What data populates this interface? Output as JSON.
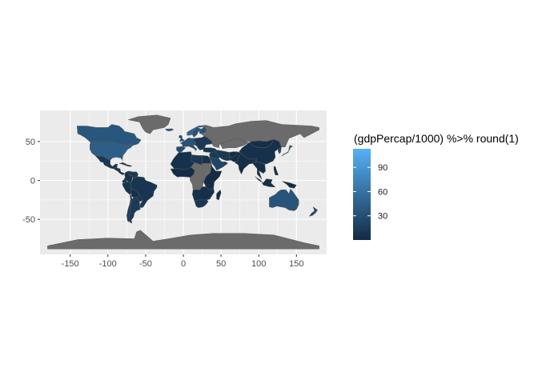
{
  "chart_data": {
    "type": "choropleth map",
    "xlim": [
      -190,
      190
    ],
    "ylim": [
      -95,
      90
    ],
    "x_ticks": [
      {
        "value": -150,
        "label": "-150"
      },
      {
        "value": -100,
        "label": "-100"
      },
      {
        "value": -50,
        "label": "-50"
      },
      {
        "value": 0,
        "label": "0"
      },
      {
        "value": 50,
        "label": "50"
      },
      {
        "value": 100,
        "label": "100"
      },
      {
        "value": 150,
        "label": "150"
      }
    ],
    "y_ticks": [
      {
        "value": 50,
        "label": "50"
      },
      {
        "value": 0,
        "label": "0"
      },
      {
        "value": -50,
        "label": "-50"
      }
    ],
    "grid": true,
    "xlabel": "",
    "ylabel": "",
    "legend": {
      "title": "(gdpPercap/1000) %>% round(1)",
      "placement": "right",
      "range": [
        0,
        113
      ],
      "breaks": [
        {
          "value": 90,
          "label": "90"
        },
        {
          "value": 60,
          "label": "60"
        },
        {
          "value": 30,
          "label": "30"
        }
      ],
      "color_low": "#132B43",
      "color_high": "#56B1F7"
    },
    "colors": {
      "panel_background": "#EBEBEB",
      "grid_major": "#FFFFFF",
      "no_data_fill": "#6B6B6B",
      "border": "#5A5A5A"
    },
    "regions": [
      {
        "name": "Canada",
        "value": 36.3
      },
      {
        "name": "United States",
        "value": 42.9
      },
      {
        "name": "Mexico",
        "value": 11.0
      },
      {
        "name": "Central America",
        "value": 6.0
      },
      {
        "name": "Caribbean",
        "value": 7.0
      },
      {
        "name": "Colombia",
        "value": 7.0
      },
      {
        "name": "Venezuela",
        "value": 11.4
      },
      {
        "name": "Ecuador",
        "value": 6.9
      },
      {
        "name": "Peru",
        "value": 7.4
      },
      {
        "name": "Brazil",
        "value": 9.1
      },
      {
        "name": "Bolivia",
        "value": 3.8
      },
      {
        "name": "Paraguay",
        "value": 4.2
      },
      {
        "name": "Chile",
        "value": 13.2
      },
      {
        "name": "Argentina",
        "value": 12.8
      },
      {
        "name": "Uruguay",
        "value": 10.6
      },
      {
        "name": "Greenland",
        "value": null
      },
      {
        "name": "Iceland",
        "value": 36.2
      },
      {
        "name": "United Kingdom",
        "value": 33.2
      },
      {
        "name": "Norway",
        "value": 49.4
      },
      {
        "name": "Sweden",
        "value": 33.9
      },
      {
        "name": "Finland",
        "value": 33.2
      },
      {
        "name": "Western Europe",
        "value": 33.0
      },
      {
        "name": "Spain",
        "value": 28.8
      },
      {
        "name": "Italy",
        "value": 28.6
      },
      {
        "name": "Eastern Europe",
        "value": 12.0
      },
      {
        "name": "Russia",
        "value": null
      },
      {
        "name": "Turkey",
        "value": 8.5
      },
      {
        "name": "Kazakhstan",
        "value": null
      },
      {
        "name": "Mongolia",
        "value": 3.1
      },
      {
        "name": "China",
        "value": 5.0
      },
      {
        "name": "Japan",
        "value": 31.7
      },
      {
        "name": "Korea",
        "value": 23.3
      },
      {
        "name": "Middle East",
        "value": 12.0
      },
      {
        "name": "Saudi Arabia",
        "value": 21.7
      },
      {
        "name": "Iran",
        "value": 11.6
      },
      {
        "name": "Afghanistan",
        "value": 1.0
      },
      {
        "name": "Pakistan",
        "value": 2.6
      },
      {
        "name": "India",
        "value": 2.5
      },
      {
        "name": "Southeast Asia",
        "value": 3.0
      },
      {
        "name": "Indonesia",
        "value": 3.5
      },
      {
        "name": "Philippines",
        "value": 3.2
      },
      {
        "name": "Papua New Guinea",
        "value": 1.9
      },
      {
        "name": "Australia",
        "value": 34.4
      },
      {
        "name": "New Zealand",
        "value": 25.2
      },
      {
        "name": "North Africa",
        "value": 5.0
      },
      {
        "name": "Libya",
        "value": 12.1
      },
      {
        "name": "Egypt",
        "value": 5.6
      },
      {
        "name": "West Africa",
        "value": 1.2
      },
      {
        "name": "Central Africa",
        "value": null
      },
      {
        "name": "East Africa",
        "value": 1.0
      },
      {
        "name": "Southern Africa",
        "value": 4.0
      },
      {
        "name": "South Africa",
        "value": 9.3
      },
      {
        "name": "Madagascar",
        "value": 1.0
      },
      {
        "name": "Antarctica",
        "value": null
      }
    ]
  }
}
